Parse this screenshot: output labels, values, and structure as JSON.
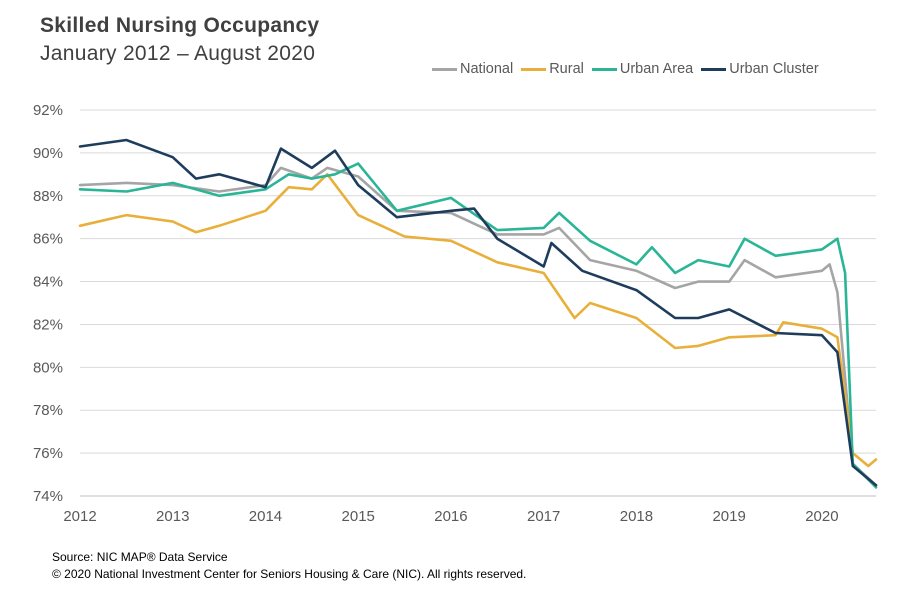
{
  "header": {
    "title": "Skilled Nursing Occupancy",
    "subtitle": "January 2012 – August 2020"
  },
  "footer": {
    "source": "Source: NIC MAP® Data Service",
    "copyright": "© 2020 National Investment Center for Seniors Housing & Care (NIC). All rights reserved."
  },
  "chart_data": {
    "type": "line",
    "title": "Skilled Nursing Occupancy",
    "subtitle": "January 2012 – August 2020",
    "xlabel": "",
    "ylabel": "",
    "x_start": "2012-01",
    "x_end": "2020-08",
    "x_ticks": [
      "2012",
      "2013",
      "2014",
      "2015",
      "2016",
      "2017",
      "2018",
      "2019",
      "2020"
    ],
    "y_ticks": [
      "74%",
      "76%",
      "78%",
      "80%",
      "82%",
      "84%",
      "86%",
      "88%",
      "90%",
      "92%"
    ],
    "ylim": [
      74,
      92
    ],
    "grid": "horizontal",
    "legend_position": "top-right",
    "series": [
      {
        "name": "National",
        "color": "#a5a5a5",
        "points": [
          [
            "2012-01",
            88.5
          ],
          [
            "2012-07",
            88.6
          ],
          [
            "2013-01",
            88.5
          ],
          [
            "2013-07",
            88.2
          ],
          [
            "2014-01",
            88.5
          ],
          [
            "2014-03",
            89.3
          ],
          [
            "2014-07",
            88.8
          ],
          [
            "2014-09",
            89.3
          ],
          [
            "2015-01",
            88.9
          ],
          [
            "2015-06",
            87.3
          ],
          [
            "2016-01",
            87.2
          ],
          [
            "2016-07",
            86.2
          ],
          [
            "2017-01",
            86.2
          ],
          [
            "2017-03",
            86.5
          ],
          [
            "2017-07",
            85.0
          ],
          [
            "2018-01",
            84.5
          ],
          [
            "2018-06",
            83.7
          ],
          [
            "2018-09",
            84.0
          ],
          [
            "2019-01",
            84.0
          ],
          [
            "2019-03",
            85.0
          ],
          [
            "2019-07",
            84.2
          ],
          [
            "2020-01",
            84.5
          ],
          [
            "2020-02",
            84.8
          ],
          [
            "2020-03",
            83.5
          ],
          [
            "2020-05",
            75.5
          ],
          [
            "2020-08",
            74.5
          ]
        ]
      },
      {
        "name": "Rural",
        "color": "#e8b03a",
        "points": [
          [
            "2012-01",
            86.6
          ],
          [
            "2012-07",
            87.1
          ],
          [
            "2013-01",
            86.8
          ],
          [
            "2013-04",
            86.3
          ],
          [
            "2013-07",
            86.6
          ],
          [
            "2014-01",
            87.3
          ],
          [
            "2014-04",
            88.4
          ],
          [
            "2014-07",
            88.3
          ],
          [
            "2014-09",
            89.0
          ],
          [
            "2015-01",
            87.1
          ],
          [
            "2015-07",
            86.1
          ],
          [
            "2016-01",
            85.9
          ],
          [
            "2016-07",
            84.9
          ],
          [
            "2017-01",
            84.4
          ],
          [
            "2017-05",
            82.3
          ],
          [
            "2017-07",
            83.0
          ],
          [
            "2018-01",
            82.3
          ],
          [
            "2018-06",
            80.9
          ],
          [
            "2018-09",
            81.0
          ],
          [
            "2019-01",
            81.4
          ],
          [
            "2019-07",
            81.5
          ],
          [
            "2019-08",
            82.1
          ],
          [
            "2020-01",
            81.8
          ],
          [
            "2020-03",
            81.4
          ],
          [
            "2020-05",
            76.0
          ],
          [
            "2020-07",
            75.4
          ],
          [
            "2020-08",
            75.7
          ]
        ]
      },
      {
        "name": "Urban Area",
        "color": "#2ab597",
        "points": [
          [
            "2012-01",
            88.3
          ],
          [
            "2012-07",
            88.2
          ],
          [
            "2013-01",
            88.6
          ],
          [
            "2013-07",
            88.0
          ],
          [
            "2014-01",
            88.3
          ],
          [
            "2014-04",
            89.0
          ],
          [
            "2014-07",
            88.8
          ],
          [
            "2014-10",
            89.0
          ],
          [
            "2015-01",
            89.5
          ],
          [
            "2015-06",
            87.3
          ],
          [
            "2016-01",
            87.9
          ],
          [
            "2016-07",
            86.4
          ],
          [
            "2017-01",
            86.5
          ],
          [
            "2017-03",
            87.2
          ],
          [
            "2017-07",
            85.9
          ],
          [
            "2018-01",
            84.8
          ],
          [
            "2018-03",
            85.6
          ],
          [
            "2018-06",
            84.4
          ],
          [
            "2018-09",
            85.0
          ],
          [
            "2019-01",
            84.7
          ],
          [
            "2019-03",
            86.0
          ],
          [
            "2019-07",
            85.2
          ],
          [
            "2020-01",
            85.5
          ],
          [
            "2020-03",
            86.0
          ],
          [
            "2020-04",
            84.4
          ],
          [
            "2020-05",
            75.5
          ],
          [
            "2020-08",
            74.4
          ]
        ]
      },
      {
        "name": "Urban Cluster",
        "color": "#1e3d5c",
        "points": [
          [
            "2012-01",
            90.3
          ],
          [
            "2012-07",
            90.6
          ],
          [
            "2013-01",
            89.8
          ],
          [
            "2013-04",
            88.8
          ],
          [
            "2013-07",
            89.0
          ],
          [
            "2014-01",
            88.4
          ],
          [
            "2014-03",
            90.2
          ],
          [
            "2014-07",
            89.3
          ],
          [
            "2014-10",
            90.1
          ],
          [
            "2015-01",
            88.5
          ],
          [
            "2015-06",
            87.0
          ],
          [
            "2016-01",
            87.3
          ],
          [
            "2016-04",
            87.4
          ],
          [
            "2016-07",
            86.0
          ],
          [
            "2017-01",
            84.7
          ],
          [
            "2017-02",
            85.8
          ],
          [
            "2017-06",
            84.5
          ],
          [
            "2018-01",
            83.6
          ],
          [
            "2018-06",
            82.3
          ],
          [
            "2018-09",
            82.3
          ],
          [
            "2019-01",
            82.7
          ],
          [
            "2019-07",
            81.6
          ],
          [
            "2020-01",
            81.5
          ],
          [
            "2020-03",
            80.7
          ],
          [
            "2020-05",
            75.4
          ],
          [
            "2020-08",
            74.5
          ]
        ]
      }
    ]
  }
}
